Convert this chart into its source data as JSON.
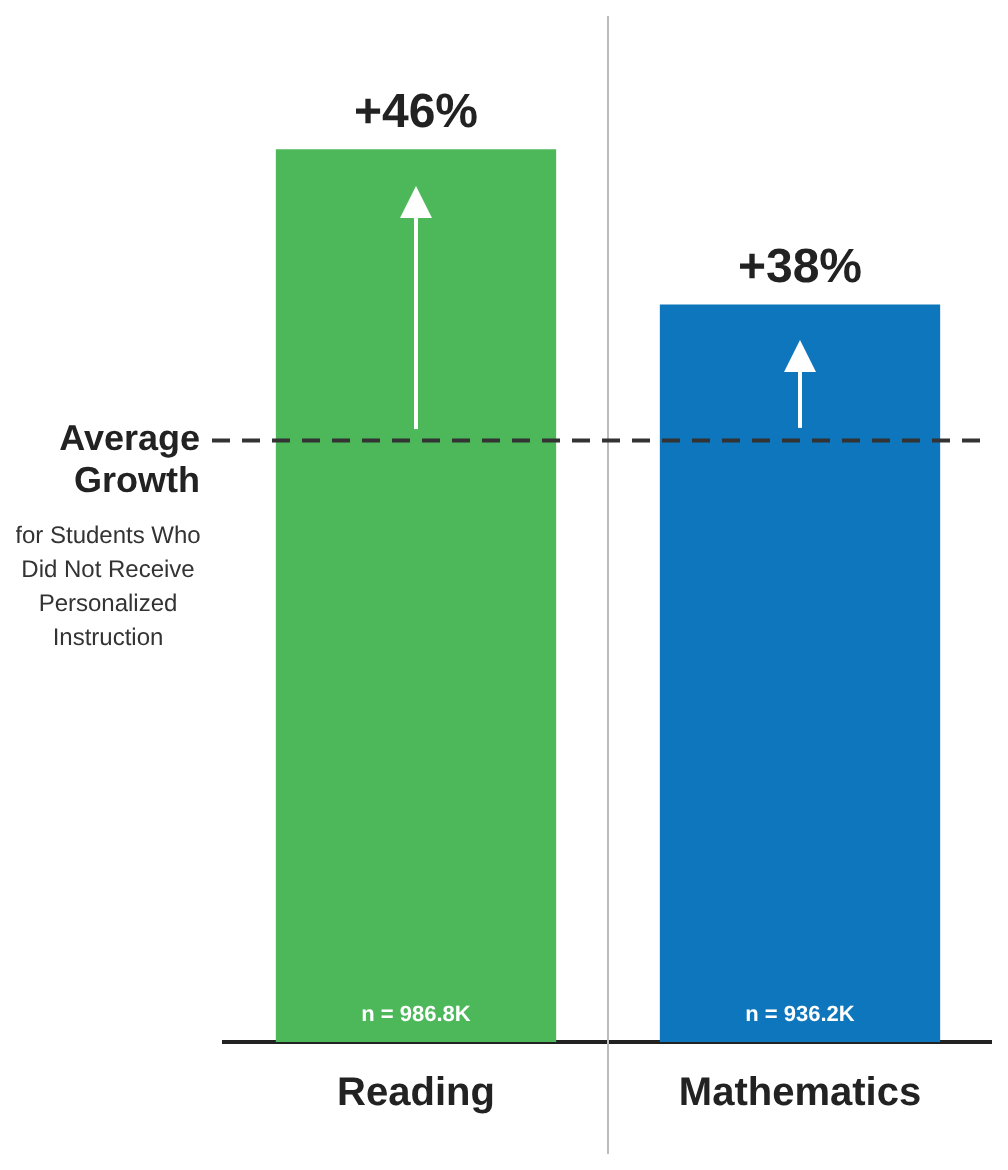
{
  "chart_data": {
    "type": "bar",
    "tick_labels": "x",
    "categories": [
      "Reading",
      "Mathematics"
    ],
    "values": [
      46,
      38
    ],
    "colors": [
      "#4cb85a",
      "#0e76bc"
    ],
    "value_labels": [
      "+46%",
      "+38%"
    ],
    "ref_lines": [
      {
        "axis": "y",
        "value": 31,
        "label": "Average Growth",
        "color": "#333333",
        "line_style": "dashed"
      }
    ],
    "annotations": [
      "for Students Who Did Not Receive Personalized Instruction",
      "n = 986.8K",
      "n = 936.2K"
    ]
  }
}
